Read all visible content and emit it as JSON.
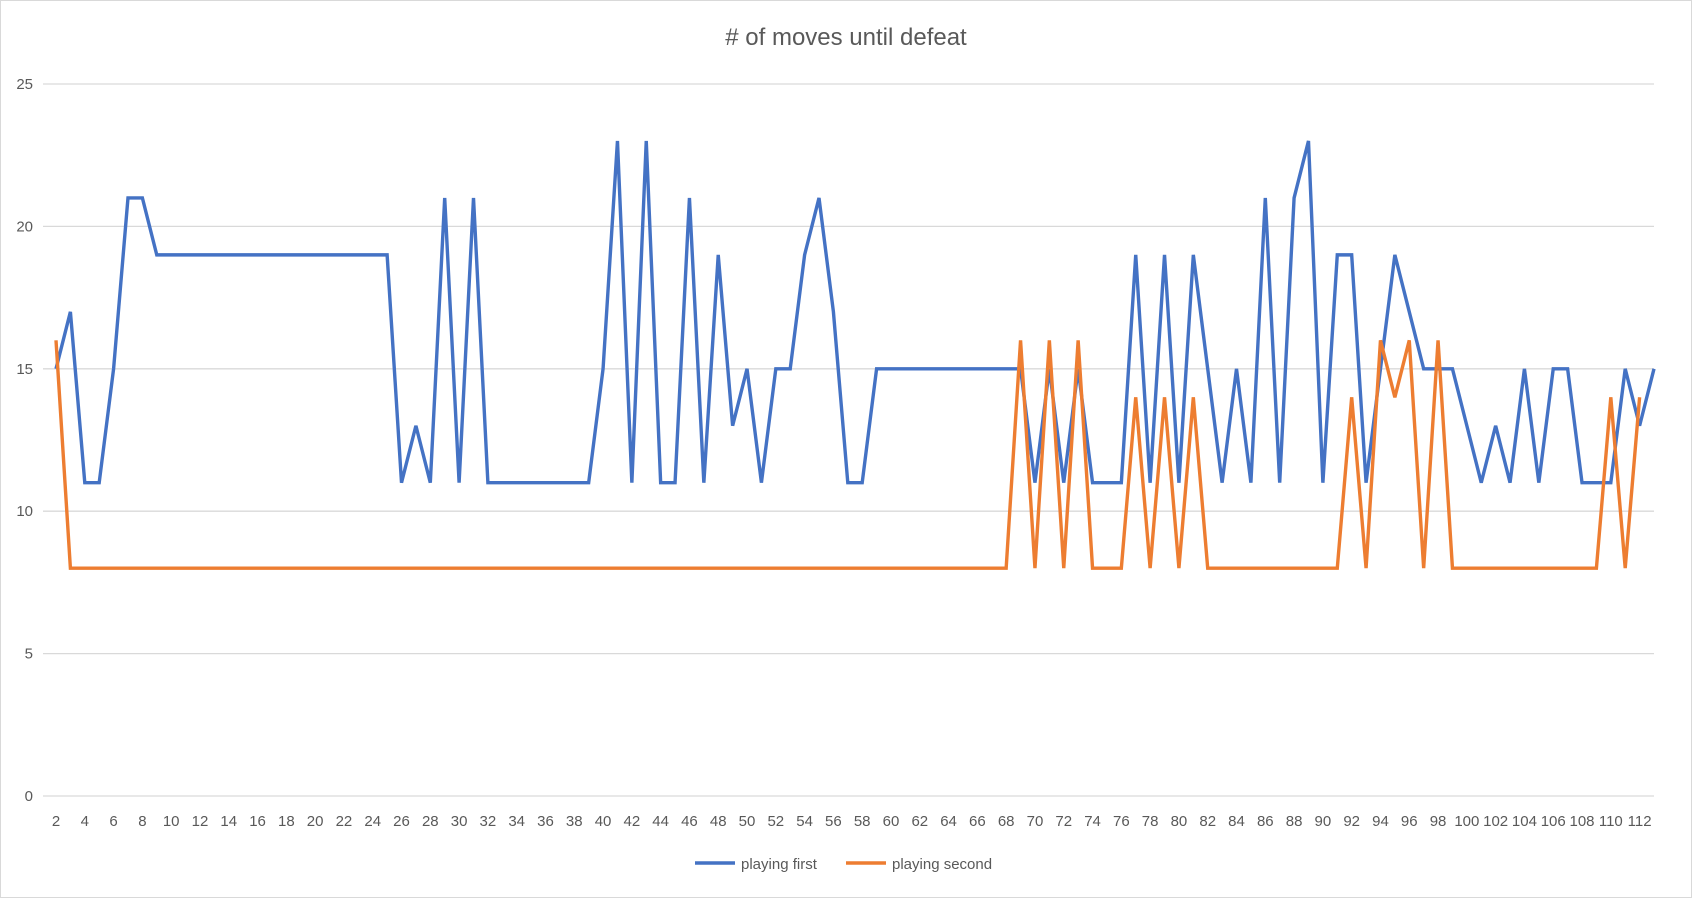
{
  "chart_data": {
    "type": "line",
    "title": "# of moves until defeat",
    "xlabel": "",
    "ylabel": "",
    "ylim": [
      0,
      25
    ],
    "yticks": [
      0,
      5,
      10,
      15,
      20,
      25
    ],
    "x_start": 2,
    "x_end": 113,
    "xtick_labels": [
      "2",
      "4",
      "6",
      "8",
      "10",
      "12",
      "14",
      "16",
      "18",
      "20",
      "22",
      "24",
      "26",
      "28",
      "30",
      "32",
      "34",
      "36",
      "38",
      "40",
      "42",
      "44",
      "46",
      "48",
      "50",
      "52",
      "54",
      "56",
      "58",
      "60",
      "62",
      "64",
      "66",
      "68",
      "70",
      "72",
      "74",
      "76",
      "78",
      "80",
      "82",
      "84",
      "86",
      "88",
      "90",
      "92",
      "94",
      "96",
      "98",
      "100",
      "102",
      "104",
      "106",
      "108",
      "110",
      "112"
    ],
    "grid": true,
    "legend_position": "bottom",
    "series": [
      {
        "name": "playing first",
        "color": "#4472c4",
        "values": [
          15,
          17,
          11,
          11,
          15,
          21,
          21,
          19,
          19,
          19,
          19,
          19,
          19,
          19,
          19,
          19,
          19,
          19,
          19,
          19,
          19,
          19,
          19,
          19,
          11,
          13,
          11,
          21,
          11,
          21,
          11,
          11,
          11,
          11,
          11,
          11,
          11,
          11,
          15,
          23,
          11,
          23,
          11,
          11,
          21,
          11,
          19,
          13,
          15,
          11,
          15,
          15,
          19,
          21,
          17,
          11,
          11,
          15,
          15,
          15,
          15,
          15,
          15,
          15,
          15,
          15,
          15,
          15,
          11,
          15,
          11,
          15,
          11,
          11,
          11,
          19,
          11,
          19,
          11,
          19,
          15,
          11,
          15,
          11,
          21,
          11,
          21,
          23,
          11,
          19,
          19,
          11,
          15,
          19,
          17,
          15,
          15,
          15,
          13,
          11,
          13,
          11,
          15,
          11,
          15,
          15,
          11,
          11,
          11,
          15,
          13,
          15
        ]
      },
      {
        "name": "playing second",
        "color": "#ed7d31",
        "values": [
          16,
          8,
          8,
          8,
          8,
          8,
          8,
          8,
          8,
          8,
          8,
          8,
          8,
          8,
          8,
          8,
          8,
          8,
          8,
          8,
          8,
          8,
          8,
          8,
          8,
          8,
          8,
          8,
          8,
          8,
          8,
          8,
          8,
          8,
          8,
          8,
          8,
          8,
          8,
          8,
          8,
          8,
          8,
          8,
          8,
          8,
          8,
          8,
          8,
          8,
          8,
          8,
          8,
          8,
          8,
          8,
          8,
          8,
          8,
          8,
          8,
          8,
          8,
          8,
          8,
          8,
          8,
          16,
          8,
          16,
          8,
          16,
          8,
          8,
          8,
          14,
          8,
          14,
          8,
          14,
          8,
          8,
          8,
          8,
          8,
          8,
          8,
          8,
          8,
          8,
          14,
          8,
          16,
          14,
          16,
          8,
          16,
          8,
          8,
          8,
          8,
          8,
          8,
          8,
          8,
          8,
          8,
          8,
          14,
          8,
          14
        ]
      }
    ]
  }
}
